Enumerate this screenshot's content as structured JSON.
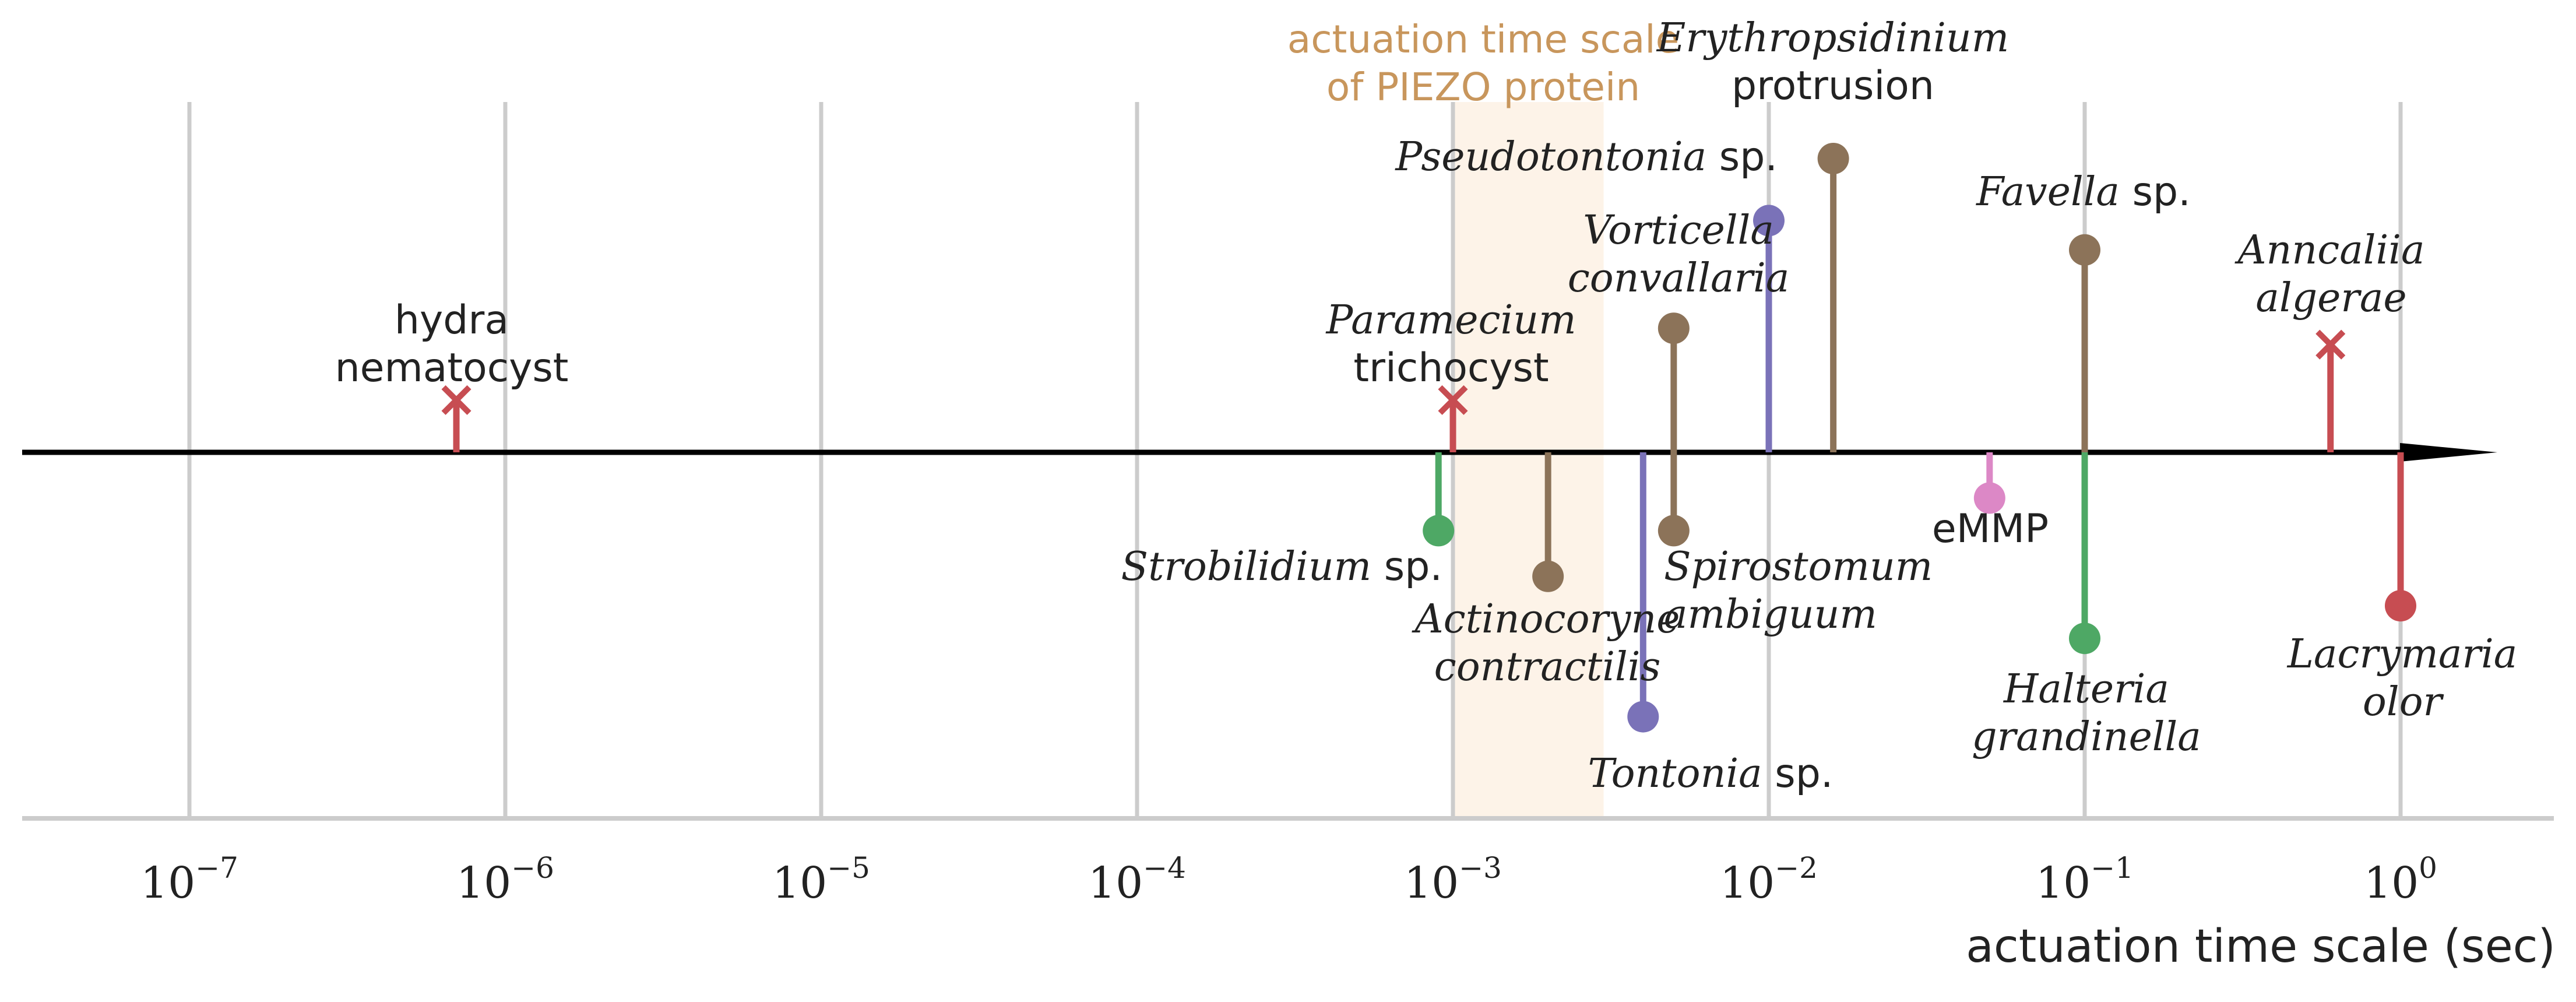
{
  "chart_data": {
    "type": "timeline",
    "xscale": "log",
    "xlabel": "actuation time scale (sec)",
    "xlim": [
      3e-08,
      5
    ],
    "grid": true,
    "colors": {
      "protist_brown": "#8c7359",
      "green": "#4ea865",
      "purple": "#7a72b8",
      "red": "#c74d52",
      "pink": "#dc88c6",
      "axis": "#000000",
      "grid": "#cccccc",
      "piezo_band": "#fdf3e8",
      "piezo_text": "#c8965c",
      "label": "#222222"
    },
    "ticks": [
      {
        "value": 1e-07,
        "base": "10",
        "exp": "−7"
      },
      {
        "value": 1e-06,
        "base": "10",
        "exp": "−6"
      },
      {
        "value": 1e-05,
        "base": "10",
        "exp": "−5"
      },
      {
        "value": 0.0001,
        "base": "10",
        "exp": "−4"
      },
      {
        "value": 0.001,
        "base": "10",
        "exp": "−3"
      },
      {
        "value": 0.01,
        "base": "10",
        "exp": "−2"
      },
      {
        "value": 0.1,
        "base": "10",
        "exp": "−1"
      },
      {
        "value": 1,
        "base": "10",
        "exp": "0"
      }
    ],
    "band": {
      "x_start": 0.001,
      "x_end": 0.003,
      "label_lines": [
        "actuation time scale",
        "of PIEZO protein"
      ]
    },
    "events": [
      {
        "x": 7e-07,
        "height": 0.16,
        "color": "red",
        "marker": "x",
        "label_lines": [
          {
            "parts": [
              {
                "text": "hydra",
                "italic": false
              }
            ]
          },
          {
            "parts": [
              {
                "text": "nematocyst",
                "italic": false
              }
            ]
          }
        ]
      },
      {
        "x": 0.001,
        "height": 0.16,
        "color": "red",
        "marker": "x",
        "label_lines": [
          {
            "parts": [
              {
                "text": "Paramecium",
                "italic": true
              }
            ]
          },
          {
            "parts": [
              {
                "text": "trichocyst",
                "italic": false
              }
            ]
          }
        ]
      },
      {
        "x": 0.0009,
        "height": -0.24,
        "color": "green",
        "marker": "o",
        "label_lines": [
          {
            "parts": [
              {
                "text": "Strobilidium",
                "italic": true
              },
              {
                "text": " sp.",
                "italic": false
              }
            ]
          }
        ]
      },
      {
        "x": 0.002,
        "height": -0.38,
        "color": "protist_brown",
        "marker": "o",
        "label_lines": [
          {
            "parts": [
              {
                "text": "Actinocoryne",
                "italic": true
              }
            ]
          },
          {
            "parts": [
              {
                "text": "contractilis",
                "italic": true
              }
            ]
          }
        ]
      },
      {
        "x": 0.004,
        "height": -0.81,
        "color": "purple",
        "marker": "o",
        "label_lines": [
          {
            "parts": [
              {
                "text": "Tontonia",
                "italic": true
              },
              {
                "text": " sp.",
                "italic": false
              }
            ]
          }
        ]
      },
      {
        "x": 0.005,
        "height": 0.38,
        "color": "protist_brown",
        "marker": "o",
        "label_lines": [
          {
            "parts": [
              {
                "text": "Vorticella",
                "italic": true
              }
            ]
          },
          {
            "parts": [
              {
                "text": "convallaria",
                "italic": true
              }
            ]
          }
        ]
      },
      {
        "x": 0.005,
        "height": -0.24,
        "color": "protist_brown",
        "marker": "o",
        "label_lines": [
          {
            "parts": [
              {
                "text": "Spirostomum",
                "italic": true
              }
            ]
          },
          {
            "parts": [
              {
                "text": "ambiguum",
                "italic": true
              }
            ]
          }
        ]
      },
      {
        "x": 0.01,
        "height": 0.71,
        "color": "purple",
        "marker": "o",
        "label_lines": [
          {
            "parts": [
              {
                "text": "Pseudotontonia",
                "italic": true
              },
              {
                "text": " sp.",
                "italic": false
              }
            ]
          }
        ]
      },
      {
        "x": 0.016,
        "height": 0.9,
        "color": "protist_brown",
        "marker": "o",
        "label_lines": [
          {
            "parts": [
              {
                "text": "Erythropsidinium",
                "italic": true
              }
            ]
          },
          {
            "parts": [
              {
                "text": "protrusion",
                "italic": false
              }
            ]
          }
        ]
      },
      {
        "x": 0.05,
        "height": -0.14,
        "color": "pink",
        "marker": "o",
        "label_lines": [
          {
            "parts": [
              {
                "text": "eMMP",
                "italic": false
              }
            ]
          }
        ]
      },
      {
        "x": 0.1,
        "height": 0.62,
        "color": "protist_brown",
        "marker": "o",
        "label_lines": [
          {
            "parts": [
              {
                "text": "Favella",
                "italic": true
              },
              {
                "text": " sp.",
                "italic": false
              }
            ]
          }
        ]
      },
      {
        "x": 0.1,
        "height": -0.57,
        "color": "green",
        "marker": "o",
        "label_lines": [
          {
            "parts": [
              {
                "text": "Halteria",
                "italic": true
              }
            ]
          },
          {
            "parts": [
              {
                "text": "grandinella",
                "italic": true
              }
            ]
          }
        ]
      },
      {
        "x": 0.6,
        "height": 0.33,
        "color": "red",
        "marker": "x",
        "label_lines": [
          {
            "parts": [
              {
                "text": "Anncaliia",
                "italic": true
              }
            ]
          },
          {
            "parts": [
              {
                "text": "algerae",
                "italic": true
              }
            ]
          }
        ]
      },
      {
        "x": 1,
        "height": -0.47,
        "color": "red",
        "marker": "o",
        "label_lines": [
          {
            "parts": [
              {
                "text": "Lacrymaria",
                "italic": true
              }
            ]
          },
          {
            "parts": [
              {
                "text": "olor",
                "italic": true
              }
            ]
          }
        ]
      }
    ]
  }
}
